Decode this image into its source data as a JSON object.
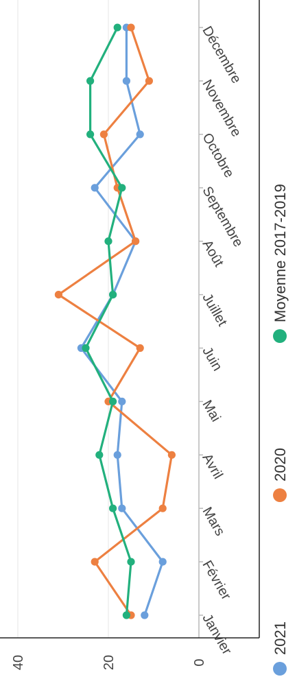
{
  "chart_data": {
    "type": "line",
    "orientation": "rotated-90-clockwise",
    "categories": [
      "Janvier",
      "Février",
      "Mars",
      "Avril",
      "Mai",
      "Juin",
      "Juillet",
      "Août",
      "Septembre",
      "Octobre",
      "Novembre",
      "Décembre"
    ],
    "series": [
      {
        "name": "2021",
        "color": "#6a9fdc",
        "values": [
          12,
          8,
          17,
          18,
          17,
          26,
          19,
          14,
          23,
          13,
          16,
          16
        ]
      },
      {
        "name": "2020",
        "color": "#ed8041",
        "values": [
          15,
          23,
          8,
          6,
          20,
          13,
          31,
          14,
          18,
          21,
          11,
          15
        ]
      },
      {
        "name": "Moyenne 2017-2019",
        "color": "#22b07d",
        "values": [
          16,
          15,
          19,
          22,
          19,
          25,
          19,
          20,
          17,
          24,
          24,
          18
        ]
      }
    ],
    "y_ticks": [
      "0",
      "20",
      "40"
    ],
    "ylim": [
      0,
      42
    ],
    "grid": true,
    "legend_position": "bottom"
  }
}
